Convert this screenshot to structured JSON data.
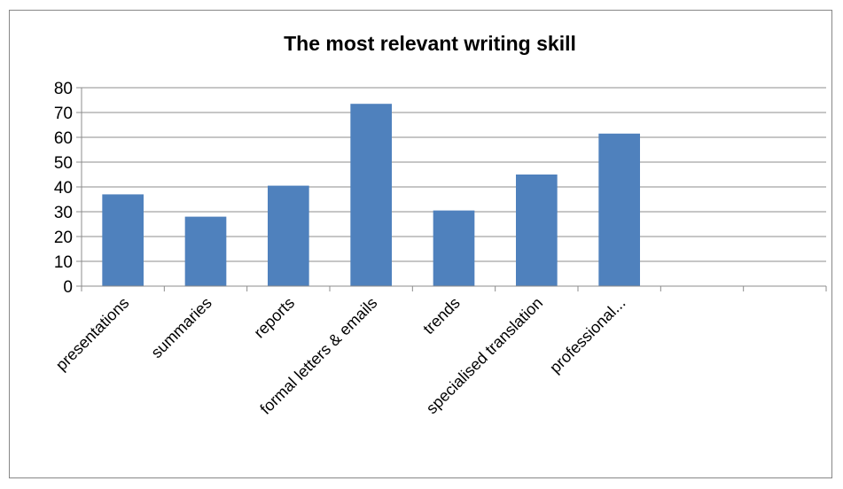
{
  "chart_data": {
    "type": "bar",
    "title": "The most relevant writing skill",
    "categories": [
      "presentations",
      "summaries",
      "reports",
      "formal letters & emails",
      "trends",
      "specialised translation",
      "professional...",
      "",
      ""
    ],
    "values": [
      37,
      28,
      40.5,
      73.5,
      30.5,
      45,
      61.5,
      null,
      null
    ],
    "ylim": [
      0,
      80
    ],
    "yticks": [
      0,
      10,
      20,
      30,
      40,
      50,
      60,
      70,
      80
    ],
    "grid": true,
    "bar_color": "#4f81bd",
    "grid_color": "#8c8c8c",
    "legend": "none"
  }
}
